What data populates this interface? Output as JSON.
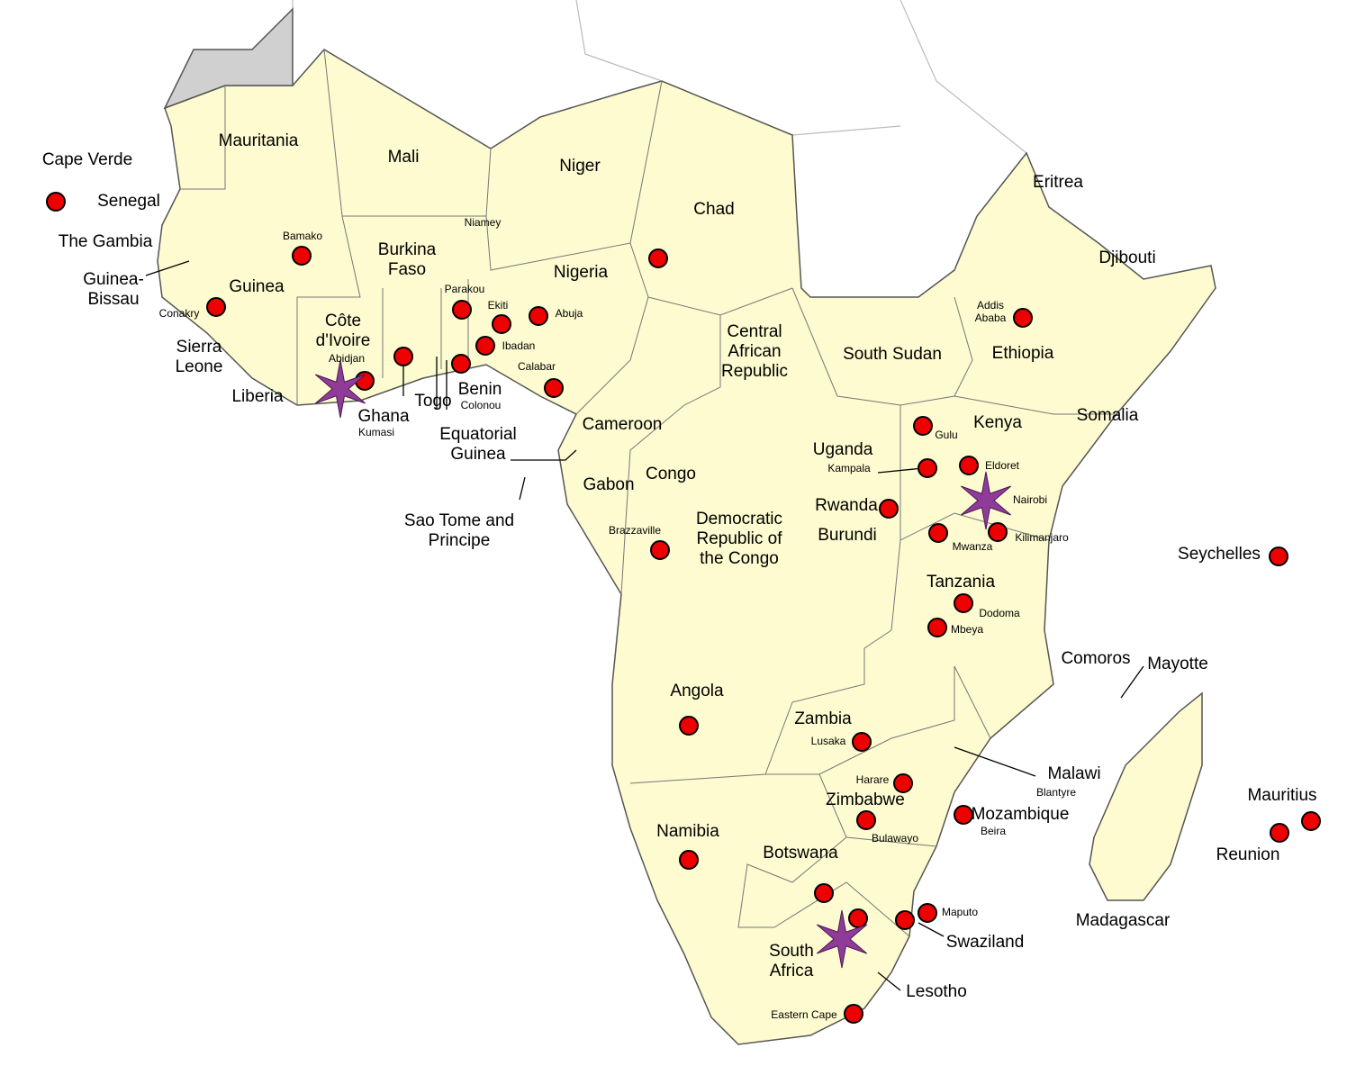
{
  "countries": [
    "Cape Verde",
    "Senegal",
    "The Gambia",
    "Guinea-Bissau",
    "Mauritania",
    "Mali",
    "Niger",
    "Chad",
    "Eritrea",
    "Djibouti",
    "Guinea",
    "Burkina Faso",
    "Nigeria",
    "Sierra Leone",
    "Liberia",
    "Côte d'Ivoire",
    "Ghana",
    "Togo",
    "Benin",
    "Central African Republic",
    "South Sudan",
    "Ethiopia",
    "Somalia",
    "Kenya",
    "Cameroon",
    "Equatorial Guinea",
    "Sao Tome and Principe",
    "Gabon",
    "Congo",
    "Uganda",
    "Democratic Republic of the Congo",
    "Rwanda",
    "Burundi",
    "Seychelles",
    "Tanzania",
    "Comoros",
    "Mayotte",
    "Angola",
    "Zambia",
    "Malawi",
    "Mozambique",
    "Zimbabwe",
    "Mauritius",
    "Reunion",
    "Namibia",
    "Botswana",
    "Madagascar",
    "Swaziland",
    "South Africa",
    "Lesotho"
  ],
  "cities": [
    "Bamako",
    "Conakry",
    "Niamey",
    "Parakou",
    "Ekiti",
    "Abuja",
    "Ibadan",
    "Abidjan",
    "Calabar",
    "Colonou",
    "Kumasi",
    "Addis Ababa",
    "Gulu",
    "Kampala",
    "Eldoret",
    "Nairobi",
    "Brazzaville",
    "Mwanza",
    "Kilimanjaro",
    "Dodoma",
    "Mbeya",
    "Lusaka",
    "Harare",
    "Blantyre",
    "Beira",
    "Bulawayo",
    "Maputo",
    "Eastern Cape"
  ]
}
